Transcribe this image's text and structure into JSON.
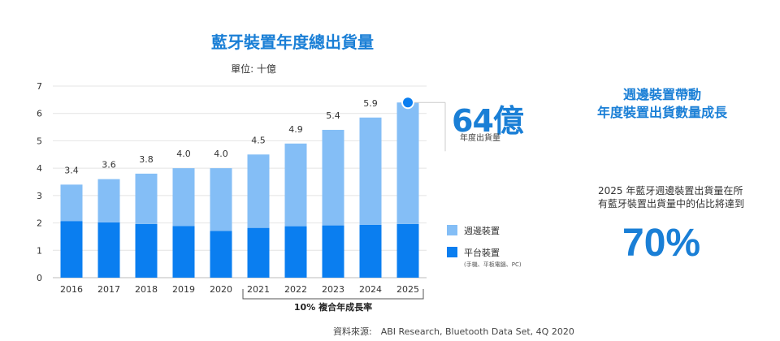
{
  "title": "藍牙裝置年度總出貨量",
  "unit": "單位: 十億",
  "chart_data": {
    "type": "bar",
    "stacked": true,
    "categories": [
      "2016",
      "2017",
      "2018",
      "2019",
      "2020",
      "2021",
      "2022",
      "2023",
      "2024",
      "2025"
    ],
    "series": [
      {
        "name": "平台裝置",
        "note": "(手機、平板電腦、PC)",
        "color": "#0a7ef0",
        "values": [
          2.07,
          2.02,
          1.96,
          1.89,
          1.71,
          1.82,
          1.88,
          1.91,
          1.93,
          1.96
        ]
      },
      {
        "name": "週邊裝置",
        "color": "#84bef6",
        "values": [
          1.33,
          1.58,
          1.84,
          2.11,
          2.29,
          2.68,
          3.02,
          3.49,
          3.92,
          4.44
        ]
      }
    ],
    "totals": [
      3.4,
      3.6,
      3.8,
      4.0,
      4.0,
      4.5,
      4.9,
      5.4,
      5.9,
      null
    ],
    "total_labels": [
      "3.4",
      "3.6",
      "3.8",
      "4.0",
      "4.0",
      "4.5",
      "4.9",
      "5.4",
      "5.9",
      ""
    ],
    "ylim": [
      0,
      7
    ],
    "yticks": [
      "0",
      "1",
      "2",
      "3",
      "4",
      "5",
      "6",
      "7"
    ],
    "grid": true,
    "bracket_label": "10% 複合年成長率",
    "bracket_range": [
      "2021",
      "2025"
    ]
  },
  "callout": {
    "value": "64億",
    "sub": "年度出貨量"
  },
  "right_panel": {
    "heading_line1": "週邊裝置帶動",
    "heading_line2": "年度裝置出貨數量成長",
    "text": "2025 年藍牙週邊裝置出貨量在所有藍牙裝置出貨量中的佔比將達到",
    "percent": "70%"
  },
  "source": "資料來源:　ABI Research, Bluetooth Data Set, 4Q 2020"
}
